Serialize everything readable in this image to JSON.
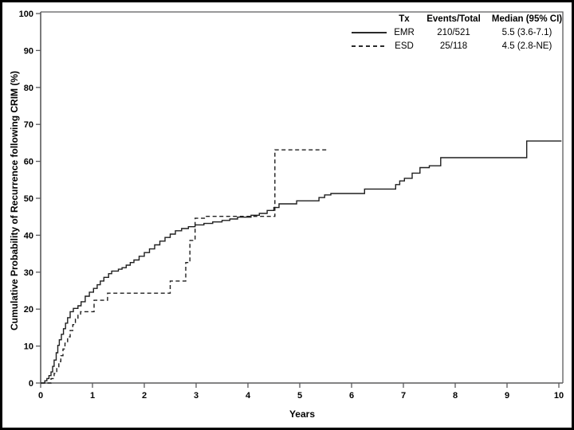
{
  "figure": {
    "xlabel": "Years",
    "ylabel": "Cumulative Probability of Recurrence following CRIM (%)"
  },
  "legend": {
    "header": {
      "tx": "Tx",
      "events_total": "Events/Total",
      "median": "Median (95% CI)"
    },
    "rows": [
      {
        "tx": "EMR",
        "events_total": "210/521",
        "median": "5.5 (3.6-7.1)",
        "line_style": "solid"
      },
      {
        "tx": "ESD",
        "events_total": "25/118",
        "median": "4.5 (2.8-NE)",
        "line_style": "dashed"
      }
    ]
  },
  "colors": {
    "curve": "#1f1f1f",
    "axis": "#5a5a5c",
    "text": "#000000",
    "background": "#ffffff"
  },
  "chart_data": {
    "type": "line",
    "subtype": "kaplan-meier-cumulative-incidence-step",
    "title": "",
    "xlabel": "Years",
    "ylabel": "Cumulative Probability of Recurrence following CRIM (%)",
    "xlim": [
      0,
      10
    ],
    "ylim": [
      0,
      100
    ],
    "xticks": [
      0,
      1,
      2,
      3,
      4,
      5,
      6,
      7,
      8,
      9,
      10
    ],
    "yticks": [
      0,
      10,
      20,
      30,
      40,
      50,
      60,
      70,
      80,
      90,
      100
    ],
    "grid": false,
    "plot_frame": true,
    "legend_position": "top-right",
    "series": [
      {
        "name": "EMR",
        "events_total": "210/521",
        "median_95ci": "5.5 (3.6-7.1)",
        "style": "solid",
        "end_x": 10.05,
        "steps": [
          [
            0,
            0
          ],
          [
            0.08,
            0.6
          ],
          [
            0.12,
            1.2
          ],
          [
            0.16,
            2.0
          ],
          [
            0.2,
            3.0
          ],
          [
            0.23,
            4.5
          ],
          [
            0.26,
            6.2
          ],
          [
            0.3,
            8.2
          ],
          [
            0.33,
            10.2
          ],
          [
            0.36,
            11.7
          ],
          [
            0.4,
            13.2
          ],
          [
            0.44,
            14.7
          ],
          [
            0.48,
            16.2
          ],
          [
            0.52,
            17.7
          ],
          [
            0.57,
            19.3
          ],
          [
            0.63,
            20.2
          ],
          [
            0.72,
            20.9
          ],
          [
            0.78,
            22.0
          ],
          [
            0.86,
            23.5
          ],
          [
            0.94,
            24.6
          ],
          [
            1.02,
            25.6
          ],
          [
            1.09,
            26.6
          ],
          [
            1.15,
            27.6
          ],
          [
            1.22,
            28.6
          ],
          [
            1.31,
            29.6
          ],
          [
            1.37,
            30.3
          ],
          [
            1.5,
            30.8
          ],
          [
            1.57,
            31.2
          ],
          [
            1.65,
            31.9
          ],
          [
            1.73,
            32.6
          ],
          [
            1.8,
            33.3
          ],
          [
            1.9,
            34.3
          ],
          [
            2.0,
            35.3
          ],
          [
            2.1,
            36.3
          ],
          [
            2.2,
            37.4
          ],
          [
            2.3,
            38.4
          ],
          [
            2.4,
            39.4
          ],
          [
            2.5,
            40.3
          ],
          [
            2.6,
            41.2
          ],
          [
            2.72,
            41.8
          ],
          [
            2.85,
            42.3
          ],
          [
            2.98,
            42.8
          ],
          [
            3.15,
            43.2
          ],
          [
            3.32,
            43.6
          ],
          [
            3.5,
            44.0
          ],
          [
            3.65,
            44.4
          ],
          [
            3.8,
            44.9
          ],
          [
            4.06,
            45.4
          ],
          [
            4.22,
            45.9
          ],
          [
            4.37,
            46.7
          ],
          [
            4.5,
            47.5
          ],
          [
            4.6,
            48.5
          ],
          [
            4.94,
            49.3
          ],
          [
            5.37,
            50.2
          ],
          [
            5.48,
            50.9
          ],
          [
            5.6,
            51.3
          ],
          [
            6.25,
            52.5
          ],
          [
            6.85,
            53.7
          ],
          [
            6.93,
            54.7
          ],
          [
            7.02,
            55.4
          ],
          [
            7.17,
            56.8
          ],
          [
            7.32,
            58.3
          ],
          [
            7.5,
            58.8
          ],
          [
            7.72,
            61.0
          ],
          [
            9.38,
            65.5
          ]
        ]
      },
      {
        "name": "ESD",
        "events_total": "25/118",
        "median_95ci": "4.5 (2.8-NE)",
        "style": "dashed",
        "end_x": 5.52,
        "steps": [
          [
            0,
            0
          ],
          [
            0.2,
            1.2
          ],
          [
            0.26,
            2.6
          ],
          [
            0.31,
            4.2
          ],
          [
            0.35,
            5.8
          ],
          [
            0.39,
            7.4
          ],
          [
            0.43,
            9.2
          ],
          [
            0.47,
            10.8
          ],
          [
            0.52,
            12.5
          ],
          [
            0.57,
            14.2
          ],
          [
            0.62,
            15.8
          ],
          [
            0.67,
            17.3
          ],
          [
            0.72,
            18.5
          ],
          [
            0.77,
            19.3
          ],
          [
            1.03,
            22.4
          ],
          [
            1.29,
            24.3
          ],
          [
            2.5,
            27.6
          ],
          [
            2.8,
            32.6
          ],
          [
            2.88,
            38.6
          ],
          [
            2.98,
            44.6
          ],
          [
            3.18,
            45.1
          ],
          [
            4.52,
            63.1
          ]
        ]
      }
    ]
  }
}
